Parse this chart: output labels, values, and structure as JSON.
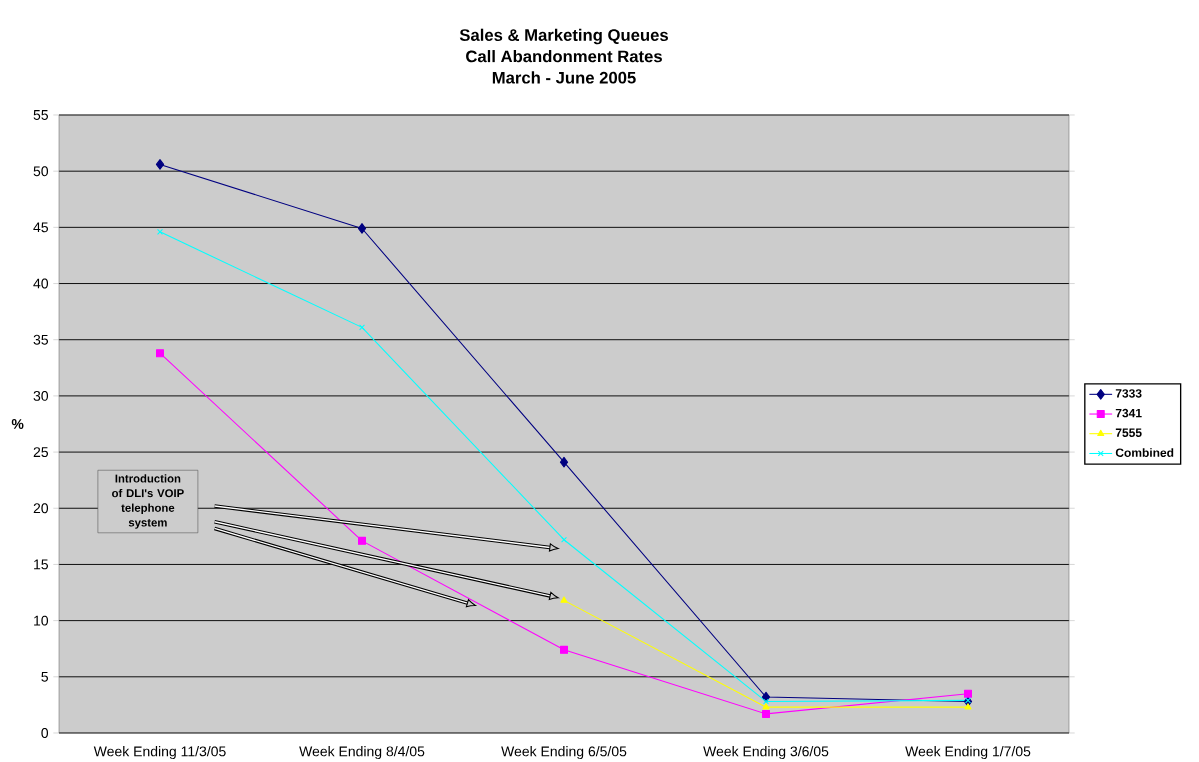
{
  "chart_data": {
    "type": "line",
    "title": "Sales & Marketing Queues\nCall Abandonment Rates\nMarch - June 2005",
    "ylabel": "%",
    "categories": [
      "Week Ending 11/3/05",
      "Week Ending 8/4/05",
      "Week Ending 6/5/05",
      "Week Ending 3/6/05",
      "Week Ending 1/7/05"
    ],
    "series": [
      {
        "name": "7333",
        "color": "#000080",
        "marker": "diamond",
        "values": [
          50.6,
          44.9,
          24.1,
          3.2,
          2.8
        ]
      },
      {
        "name": "7341",
        "color": "#ff00ff",
        "marker": "square",
        "values": [
          33.8,
          17.1,
          7.4,
          1.7,
          3.5
        ]
      },
      {
        "name": "7555",
        "color": "#ffff00",
        "marker": "triangle",
        "values": [
          null,
          null,
          11.8,
          2.3,
          2.3
        ]
      },
      {
        "name": "Combined",
        "color": "#00ffff",
        "marker": "cross",
        "values": [
          44.6,
          36.1,
          17.2,
          2.8,
          2.9
        ]
      }
    ],
    "ylim": [
      0,
      55
    ],
    "yticks": [
      0,
      5,
      10,
      15,
      20,
      25,
      30,
      35,
      40,
      45,
      50,
      55
    ],
    "grid": "y",
    "legend": "right",
    "line_style": "solid",
    "annotations": [
      "Introduction of DLI's VOIP telephone system"
    ]
  }
}
